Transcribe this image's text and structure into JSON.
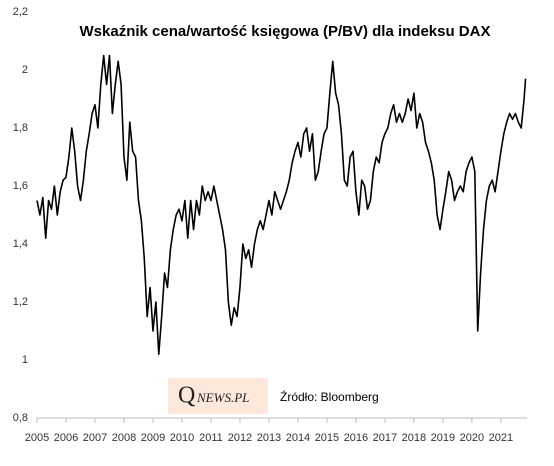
{
  "chart_data": {
    "type": "line",
    "title": "Wskaźnik cena/wartość księgowa (P/BV) dla indeksu DAX",
    "annotations": [
      "Q",
      "NEWS.PL",
      "Źródło: Bloomberg"
    ],
    "x": [
      2005.0,
      2005.1,
      2005.2,
      2005.3,
      2005.4,
      2005.5,
      2005.6,
      2005.7,
      2005.8,
      2005.9,
      2006.0,
      2006.1,
      2006.2,
      2006.3,
      2006.4,
      2006.5,
      2006.6,
      2006.7,
      2006.8,
      2006.9,
      2007.0,
      2007.1,
      2007.2,
      2007.3,
      2007.4,
      2007.5,
      2007.6,
      2007.7,
      2007.8,
      2007.9,
      2008.0,
      2008.1,
      2008.2,
      2008.3,
      2008.4,
      2008.5,
      2008.6,
      2008.7,
      2008.8,
      2008.9,
      2009.0,
      2009.1,
      2009.2,
      2009.3,
      2009.4,
      2009.5,
      2009.6,
      2009.7,
      2009.8,
      2009.9,
      2010.0,
      2010.1,
      2010.2,
      2010.3,
      2010.4,
      2010.5,
      2010.6,
      2010.7,
      2010.8,
      2010.9,
      2011.0,
      2011.1,
      2011.2,
      2011.3,
      2011.4,
      2011.5,
      2011.6,
      2011.7,
      2011.8,
      2011.9,
      2012.0,
      2012.1,
      2012.2,
      2012.3,
      2012.4,
      2012.5,
      2012.6,
      2012.7,
      2012.8,
      2012.9,
      2013.0,
      2013.1,
      2013.2,
      2013.3,
      2013.4,
      2013.5,
      2013.6,
      2013.7,
      2013.8,
      2013.9,
      2014.0,
      2014.1,
      2014.2,
      2014.3,
      2014.4,
      2014.5,
      2014.6,
      2014.7,
      2014.8,
      2014.9,
      2015.0,
      2015.1,
      2015.2,
      2015.3,
      2015.4,
      2015.5,
      2015.6,
      2015.7,
      2015.8,
      2015.9,
      2016.0,
      2016.1,
      2016.2,
      2016.3,
      2016.4,
      2016.5,
      2016.6,
      2016.7,
      2016.8,
      2016.9,
      2017.0,
      2017.1,
      2017.2,
      2017.3,
      2017.4,
      2017.5,
      2017.6,
      2017.7,
      2017.8,
      2017.9,
      2018.0,
      2018.1,
      2018.2,
      2018.3,
      2018.4,
      2018.5,
      2018.6,
      2018.7,
      2018.8,
      2018.9,
      2019.0,
      2019.1,
      2019.2,
      2019.3,
      2019.4,
      2019.5,
      2019.6,
      2019.7,
      2019.8,
      2019.9,
      2020.0,
      2020.1,
      2020.2,
      2020.3,
      2020.4,
      2020.5,
      2020.6,
      2020.7,
      2020.8,
      2020.9,
      2021.0,
      2021.1,
      2021.2,
      2021.3,
      2021.4,
      2021.5,
      2021.6,
      2021.7,
      2021.8,
      2021.85
    ],
    "series": [
      {
        "color": "#000000",
        "values": [
          1.55,
          1.5,
          1.56,
          1.42,
          1.55,
          1.52,
          1.6,
          1.5,
          1.58,
          1.62,
          1.63,
          1.7,
          1.8,
          1.72,
          1.6,
          1.55,
          1.62,
          1.72,
          1.78,
          1.85,
          1.88,
          1.8,
          1.95,
          2.05,
          1.95,
          2.05,
          1.85,
          1.95,
          2.03,
          1.95,
          1.7,
          1.62,
          1.82,
          1.72,
          1.7,
          1.55,
          1.48,
          1.35,
          1.15,
          1.25,
          1.1,
          1.2,
          1.02,
          1.15,
          1.3,
          1.25,
          1.38,
          1.45,
          1.5,
          1.52,
          1.48,
          1.55,
          1.42,
          1.55,
          1.45,
          1.55,
          1.5,
          1.6,
          1.55,
          1.58,
          1.55,
          1.6,
          1.55,
          1.5,
          1.45,
          1.38,
          1.2,
          1.12,
          1.18,
          1.15,
          1.25,
          1.4,
          1.35,
          1.38,
          1.32,
          1.4,
          1.45,
          1.48,
          1.45,
          1.5,
          1.55,
          1.5,
          1.58,
          1.55,
          1.52,
          1.55,
          1.58,
          1.62,
          1.68,
          1.72,
          1.75,
          1.7,
          1.78,
          1.8,
          1.72,
          1.78,
          1.62,
          1.65,
          1.72,
          1.78,
          1.8,
          1.92,
          2.03,
          1.92,
          1.88,
          1.78,
          1.62,
          1.6,
          1.7,
          1.72,
          1.58,
          1.5,
          1.62,
          1.6,
          1.52,
          1.55,
          1.65,
          1.7,
          1.68,
          1.75,
          1.78,
          1.8,
          1.85,
          1.88,
          1.82,
          1.85,
          1.82,
          1.85,
          1.9,
          1.86,
          1.92,
          1.8,
          1.85,
          1.82,
          1.75,
          1.72,
          1.68,
          1.62,
          1.5,
          1.45,
          1.52,
          1.58,
          1.65,
          1.62,
          1.55,
          1.58,
          1.6,
          1.58,
          1.65,
          1.68,
          1.7,
          1.65,
          1.1,
          1.3,
          1.45,
          1.55,
          1.6,
          1.62,
          1.58,
          1.65,
          1.72,
          1.78,
          1.82,
          1.85,
          1.83,
          1.85,
          1.82,
          1.8,
          1.9,
          1.97
        ]
      }
    ],
    "xlim": [
      2005,
      2021.9
    ],
    "xticks": [
      2005,
      2006,
      2007,
      2008,
      2009,
      2010,
      2011,
      2012,
      2013,
      2014,
      2015,
      2016,
      2017,
      2018,
      2019,
      2020,
      2021
    ],
    "ylim": [
      0.8,
      2.2
    ],
    "yticks": [
      {
        "value": 0.8,
        "label": "0,8"
      },
      1,
      {
        "value": 1.2,
        "label": "1,2"
      },
      {
        "value": 1.4,
        "label": "1,4"
      },
      {
        "value": 1.6,
        "label": "1,6"
      },
      {
        "value": 1.8,
        "label": "1,8"
      },
      2,
      {
        "value": 2.2,
        "label": "2,2"
      }
    ],
    "grid": false
  }
}
